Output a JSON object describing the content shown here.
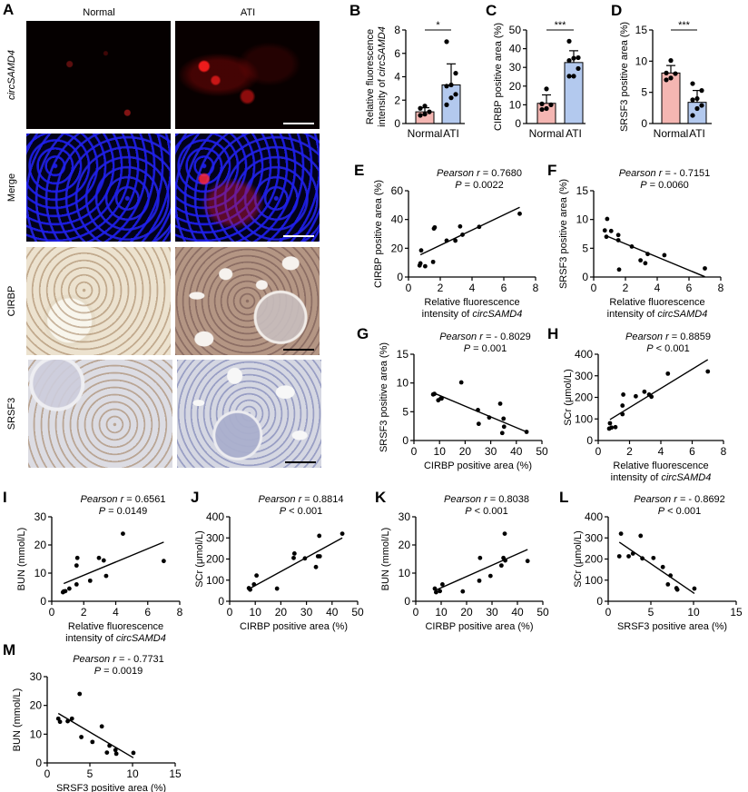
{
  "figure": {
    "panels": [
      "A",
      "B",
      "C",
      "D",
      "E",
      "F",
      "G",
      "H",
      "I",
      "J",
      "K",
      "L",
      "M"
    ]
  },
  "panel_a": {
    "letter": "A",
    "columns": [
      "Normal",
      "ATI"
    ],
    "rows": [
      "circSAMD4",
      "Merge",
      "CIRBP",
      "SRSF3"
    ]
  },
  "colors": {
    "normal_bar": "#f4b6b2",
    "ati_bar": "#b3c9ee",
    "point": "#000000",
    "line": "#000000"
  },
  "chart_data": [
    {
      "panel": "B",
      "type": "bar",
      "categories": [
        "Normal",
        "ATI"
      ],
      "values": [
        1.0,
        3.3
      ],
      "error_sd": [
        0.35,
        1.8
      ],
      "points": [
        [
          0.7,
          0.8,
          1.0,
          1.3,
          1.5
        ],
        [
          1.6,
          2.2,
          2.5,
          3.2,
          3.3,
          4.3,
          7.0
        ]
      ],
      "significance": "*",
      "title": "",
      "xlabel": "",
      "ylabel": "Relative fluorescence intensity of circSAMD4",
      "ylabel_lines": [
        "Relative fluorescence",
        "intensity of circSAMD4"
      ],
      "yticks": [
        0,
        2,
        4,
        6,
        8
      ],
      "ylim": [
        0,
        8
      ]
    },
    {
      "panel": "C",
      "type": "bar",
      "categories": [
        "Normal",
        "ATI"
      ],
      "values": [
        10.8,
        32.6
      ],
      "error_sd": [
        4.5,
        6.3
      ],
      "points": [
        [
          7.5,
          8.0,
          10.0,
          10.5,
          18.5
        ],
        [
          25.3,
          25.3,
          29.4,
          33.7,
          34.9,
          35.2,
          44.0
        ]
      ],
      "significance": "***",
      "xlabel": "",
      "ylabel": "CIRBP positive area (%)",
      "yticks": [
        0,
        10,
        20,
        30,
        40,
        50
      ],
      "ylim": [
        0,
        50
      ]
    },
    {
      "panel": "D",
      "type": "bar",
      "categories": [
        "Normal",
        "ATI"
      ],
      "values": [
        8.1,
        3.4
      ],
      "error_sd": [
        1.2,
        1.9
      ],
      "points": [
        [
          7.0,
          7.3,
          8.0,
          8.1,
          10.1
        ],
        [
          1.3,
          2.4,
          2.9,
          3.8,
          4.0,
          5.3,
          6.4
        ]
      ],
      "significance": "***",
      "xlabel": "",
      "ylabel": "SRSF3 positive area (%)",
      "yticks": [
        0,
        5,
        10,
        15
      ],
      "ylim": [
        0,
        15
      ]
    },
    {
      "panel": "E",
      "type": "scatter",
      "title_lines": [
        "Pearson r = 0.7680",
        "P = 0.0022"
      ],
      "stat_label": "Pearson r",
      "r": "0.7680",
      "p_op": "=",
      "p": "0.0022",
      "xlabel": "Relative fluorescence intensity of circSAMD4",
      "xlabel_lines": [
        "Relative fluorescence",
        "intensity of circSAMD4"
      ],
      "ylabel": "CIRBP positive area (%)",
      "xticks": [
        0,
        2,
        4,
        6,
        8
      ],
      "xlim": [
        0,
        8
      ],
      "yticks": [
        0,
        20,
        40,
        60
      ],
      "ylim": [
        0,
        60
      ],
      "x": [
        0.7,
        0.75,
        0.8,
        1.05,
        1.55,
        1.6,
        1.65,
        2.4,
        2.95,
        3.25,
        3.4,
        4.45,
        7.0
      ],
      "y": [
        8.0,
        9.5,
        18.5,
        7.5,
        10.5,
        33.7,
        34.5,
        25.3,
        25.3,
        35.2,
        29.4,
        34.9,
        44.0
      ],
      "fit": [
        [
          0.75,
          15.5
        ],
        [
          7.0,
          48.5
        ]
      ]
    },
    {
      "panel": "F",
      "type": "scatter",
      "title_lines": [
        "Pearson r = - 0.7151",
        "P = 0.0060"
      ],
      "stat_label": "Pearson r",
      "r": "- 0.7151",
      "p_op": "=",
      "p": "0.0060",
      "xlabel": "Relative fluorescence intensity of circSAMD4",
      "xlabel_lines": [
        "Relative fluorescence",
        "intensity of circSAMD4"
      ],
      "ylabel": "SRSF3 positive area (%)",
      "xticks": [
        0,
        2,
        4,
        6,
        8
      ],
      "xlim": [
        0,
        8
      ],
      "yticks": [
        0,
        5,
        10,
        15
      ],
      "ylim": [
        0,
        15
      ],
      "x": [
        0.7,
        0.8,
        0.85,
        1.1,
        1.55,
        1.55,
        1.6,
        2.4,
        2.95,
        3.25,
        3.4,
        4.45,
        7.0
      ],
      "y": [
        8.1,
        7.0,
        10.1,
        8.0,
        7.3,
        6.4,
        1.3,
        5.3,
        2.9,
        2.4,
        4.0,
        3.8,
        1.5
      ],
      "fit": [
        [
          0.75,
          7.2
        ],
        [
          7.0,
          0.05
        ]
      ]
    },
    {
      "panel": "G",
      "type": "scatter",
      "title_lines": [
        "Pearson r = - 0.8029",
        "P = 0.001"
      ],
      "stat_label": "Pearson r",
      "r": "- 0.8029",
      "p_op": "=",
      "p": "0.001",
      "xlabel": "CIRBP positive area (%)",
      "ylabel": "SRSF3 positive area (%)",
      "xticks": [
        0,
        10,
        20,
        30,
        40,
        50
      ],
      "xlim": [
        0,
        50
      ],
      "yticks": [
        0,
        5,
        10,
        15
      ],
      "ylim": [
        0,
        15
      ],
      "x": [
        7.5,
        8.0,
        9.5,
        10.5,
        10.8,
        18.5,
        25.0,
        25.3,
        29.4,
        33.7,
        34.5,
        35.0,
        35.2,
        44.0
      ],
      "y": [
        8.0,
        8.1,
        7.0,
        7.3,
        7.3,
        10.1,
        5.3,
        2.9,
        4.0,
        6.4,
        1.3,
        3.8,
        2.4,
        1.5
      ],
      "fit": [
        [
          7.5,
          8.3
        ],
        [
          44.0,
          1.5
        ]
      ]
    },
    {
      "panel": "H",
      "type": "scatter",
      "title_lines": [
        "Pearson r = 0.8859",
        "P < 0.001"
      ],
      "stat_label": "Pearson r",
      "r": "0.8859",
      "p_op": "<",
      "p": "0.001",
      "xlabel": "Relative fluorescence intensity of circSAMD4",
      "xlabel_lines": [
        "Relative fluorescence",
        "intensity of circSAMD4"
      ],
      "ylabel": "SCr (μmol/L)",
      "xticks": [
        0,
        2,
        4,
        6,
        8
      ],
      "xlim": [
        0,
        8
      ],
      "yticks": [
        0,
        100,
        200,
        300,
        400
      ],
      "ylim": [
        0,
        400
      ],
      "x": [
        0.7,
        0.75,
        0.85,
        1.1,
        1.55,
        1.55,
        1.6,
        2.4,
        2.95,
        3.25,
        3.4,
        4.45,
        7.0
      ],
      "y": [
        55,
        80,
        60,
        62,
        122,
        162,
        213,
        205,
        226,
        213,
        203,
        310,
        320
      ],
      "fit": [
        [
          0.75,
          97
        ],
        [
          7.0,
          375
        ]
      ]
    },
    {
      "panel": "I",
      "type": "scatter",
      "title_lines": [
        "Pearson r = 0.6561",
        "P = 0.0149"
      ],
      "stat_label": "Pearson r",
      "r": "0.6561",
      "p_op": "=",
      "p": "0.0149",
      "xlabel": "Relative fluorescence intensity of circSAMD4",
      "xlabel_lines": [
        "Relative fluorescence",
        "intensity of circSAMD4"
      ],
      "ylabel": "BUN (mmol/L)",
      "xticks": [
        0,
        2,
        4,
        6,
        8
      ],
      "xlim": [
        0,
        8
      ],
      "yticks": [
        0,
        10,
        20,
        30
      ],
      "ylim": [
        0,
        30
      ],
      "x": [
        0.7,
        0.75,
        0.85,
        1.1,
        1.55,
        1.55,
        1.6,
        2.4,
        2.95,
        3.25,
        3.4,
        4.45,
        7.0
      ],
      "y": [
        3.2,
        3.5,
        3.6,
        4.5,
        6.0,
        12.7,
        15.4,
        7.3,
        15.4,
        14.5,
        9.0,
        24.0,
        14.3
      ],
      "fit": [
        [
          0.75,
          6.3
        ],
        [
          7.0,
          21.0
        ]
      ]
    },
    {
      "panel": "J",
      "type": "scatter",
      "title_lines": [
        "Pearson r = 0.8814",
        "P < 0.001"
      ],
      "stat_label": "Pearson r",
      "r": "0.8814",
      "p_op": "<",
      "p": "0.001",
      "xlabel": "CIRBP positive area (%)",
      "ylabel": "SCr (μmol/L)",
      "xticks": [
        0,
        10,
        20,
        30,
        40,
        50
      ],
      "xlim": [
        0,
        50
      ],
      "yticks": [
        0,
        100,
        200,
        300,
        400
      ],
      "ylim": [
        0,
        400
      ],
      "x": [
        7.5,
        8.0,
        9.5,
        10.5,
        18.5,
        25.0,
        25.3,
        29.4,
        33.7,
        34.5,
        35.0,
        35.2,
        44.0
      ],
      "y": [
        62,
        55,
        80,
        122,
        60,
        205,
        226,
        203,
        162,
        213,
        310,
        213,
        320
      ],
      "fit": [
        [
          7.5,
          58
        ],
        [
          44.0,
          300
        ]
      ]
    },
    {
      "panel": "K",
      "type": "scatter",
      "title_lines": [
        "Pearson r = 0.8038",
        "P < 0.001"
      ],
      "stat_label": "Pearson r",
      "r": "0.8038",
      "p_op": "<",
      "p": "0.001",
      "xlabel": "CIRBP positive area (%)",
      "ylabel": "BUN (mmol/L)",
      "xticks": [
        0,
        10,
        20,
        30,
        40,
        50
      ],
      "xlim": [
        0,
        50
      ],
      "yticks": [
        0,
        10,
        20,
        30
      ],
      "ylim": [
        0,
        30
      ],
      "x": [
        7.5,
        8.0,
        9.5,
        10.5,
        18.5,
        25.0,
        25.3,
        29.4,
        33.7,
        34.5,
        35.0,
        35.2,
        44.0
      ],
      "y": [
        4.5,
        3.2,
        3.6,
        6.0,
        3.5,
        7.3,
        15.4,
        9.0,
        12.7,
        15.4,
        24.0,
        14.5,
        14.3
      ],
      "fit": [
        [
          7.5,
          3.8
        ],
        [
          44.0,
          18.4
        ]
      ]
    },
    {
      "panel": "L",
      "type": "scatter",
      "title_lines": [
        "Pearson r = - 0.8692",
        "P < 0.001"
      ],
      "stat_label": "Pearson r",
      "r": "- 0.8692",
      "p_op": "<",
      "p": "0.001",
      "xlabel": "SRSF3 positive area (%)",
      "ylabel": "SCr (μmol/L)",
      "xticks": [
        0,
        5,
        10,
        15
      ],
      "xlim": [
        0,
        15
      ],
      "yticks": [
        0,
        100,
        200,
        300,
        400
      ],
      "ylim": [
        0,
        400
      ],
      "x": [
        1.3,
        1.5,
        2.4,
        2.9,
        3.8,
        4.0,
        5.3,
        6.4,
        7.0,
        7.3,
        8.0,
        8.1,
        10.1
      ],
      "y": [
        213,
        320,
        213,
        226,
        310,
        203,
        205,
        162,
        80,
        122,
        62,
        55,
        60
      ],
      "fit": [
        [
          1.3,
          280
        ],
        [
          10.1,
          37
        ]
      ]
    },
    {
      "panel": "M",
      "type": "scatter",
      "title_lines": [
        "Pearson r = - 0.7731",
        "P = 0.0019"
      ],
      "stat_label": "Pearson r",
      "r": "- 0.7731",
      "p_op": "=",
      "p": "0.0019",
      "xlabel": "SRSF3 positive area (%)",
      "ylabel": "BUN (mmol/L)",
      "xticks": [
        0,
        5,
        10,
        15
      ],
      "xlim": [
        0,
        15
      ],
      "yticks": [
        0,
        10,
        20,
        30
      ],
      "ylim": [
        0,
        30
      ],
      "x": [
        1.3,
        1.5,
        2.4,
        2.9,
        3.8,
        4.0,
        5.3,
        6.4,
        7.0,
        7.3,
        8.0,
        8.1,
        10.1
      ],
      "y": [
        15.4,
        14.3,
        14.5,
        15.4,
        24.0,
        9.0,
        7.3,
        12.7,
        3.6,
        6.0,
        4.5,
        3.2,
        3.5
      ],
      "fit": [
        [
          1.3,
          17.2
        ],
        [
          10.1,
          1.8
        ]
      ]
    }
  ]
}
